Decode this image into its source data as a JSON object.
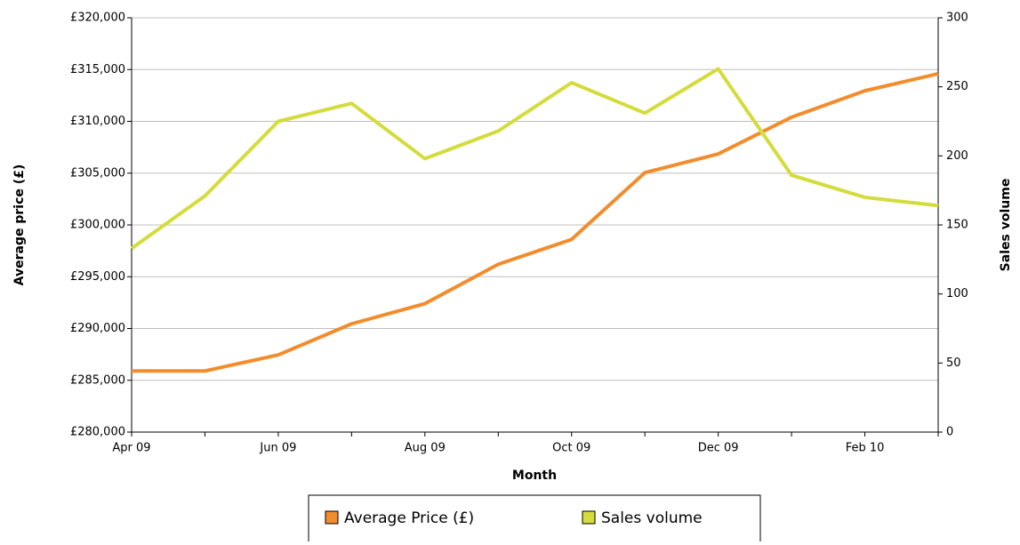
{
  "chart_data": {
    "type": "line",
    "categories": [
      "Apr 09",
      null,
      "Jun 09",
      null,
      "Aug 09",
      null,
      "Oct 09",
      null,
      "Dec 09",
      null,
      "Feb 10",
      null
    ],
    "series": [
      {
        "name": "Average Price (£)",
        "color": "#f28c2c",
        "values": [
          285900,
          285900,
          287450,
          290450,
          292400,
          296200,
          298600,
          305050,
          306850,
          310400,
          312950,
          314600
        ]
      },
      {
        "name": "Sales volume",
        "color": "#d4dc3c",
        "axis": "y2",
        "values": [
          133,
          171,
          225,
          238,
          198,
          218,
          253,
          231,
          263,
          186,
          170,
          164
        ]
      }
    ],
    "ylim": [
      280000,
      320000
    ],
    "yticks": [
      {
        "value": 280000,
        "label": "£280,000"
      },
      {
        "value": 285000,
        "label": "£285,000"
      },
      {
        "value": 290000,
        "label": "£290,000"
      },
      {
        "value": 295000,
        "label": "£295,000"
      },
      {
        "value": 300000,
        "label": "£300,000"
      },
      {
        "value": 305000,
        "label": "£305,000"
      },
      {
        "value": 310000,
        "label": "£310,000"
      },
      {
        "value": 315000,
        "label": "£315,000"
      },
      {
        "value": 320000,
        "label": "£320,000"
      }
    ],
    "y2lim": [
      0,
      300
    ],
    "y2ticks": [
      0,
      50,
      100,
      150,
      200,
      250,
      300
    ],
    "x_label": "Month",
    "y_label": "Average price (£)",
    "y2_label": "Sales volume",
    "grid": true
  }
}
